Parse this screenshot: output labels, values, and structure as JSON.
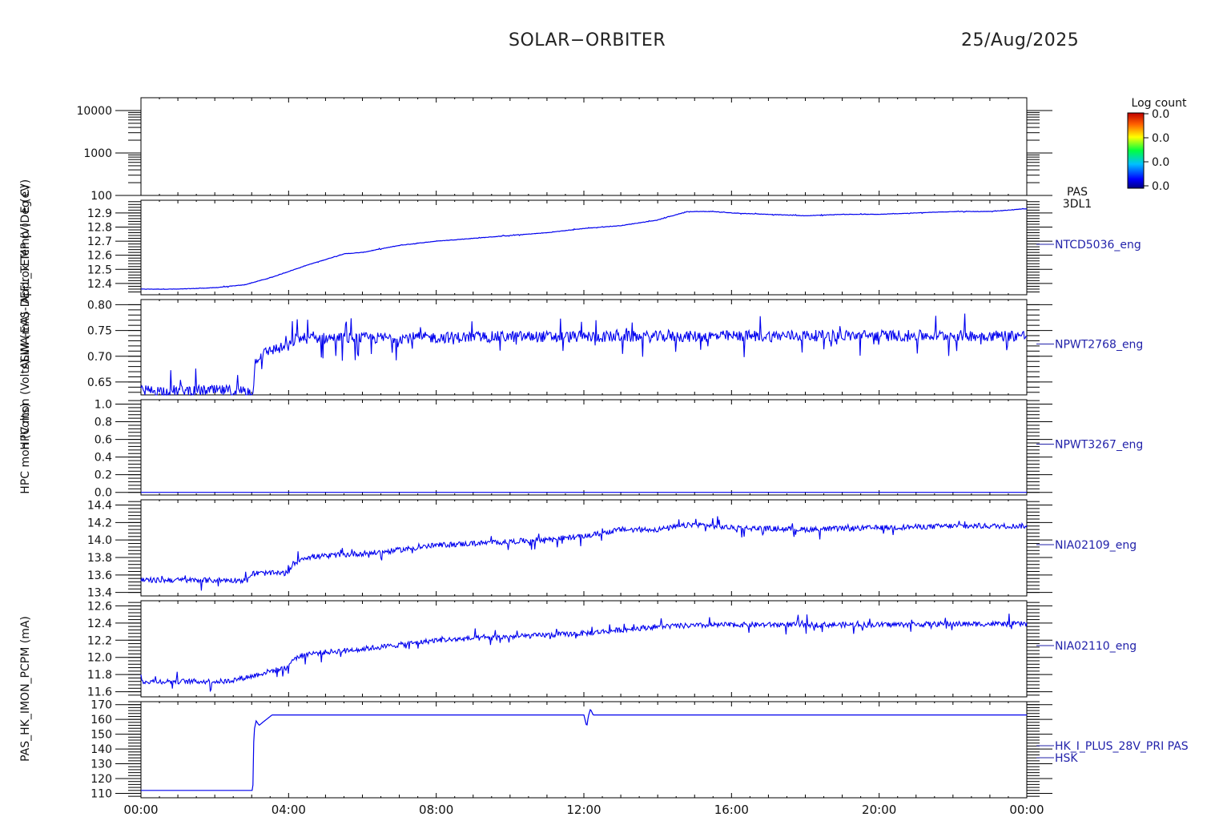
{
  "header": {
    "title": "SOLAR−ORBITER",
    "date": "25/Aug/2025"
  },
  "colors": {
    "axis": "#000000",
    "data": "#0000ee",
    "label": "#2222aa"
  },
  "colorbar": {
    "title": "Log count",
    "tick_labels": [
      "0.0",
      "0.0",
      "0.0",
      "0.0"
    ]
  },
  "x_axis": {
    "tick_labels": [
      "00:00",
      "04:00",
      "08:00",
      "12:00",
      "16:00",
      "20:00",
      "00:00"
    ],
    "unit": "hours",
    "range": [
      0,
      24
    ]
  },
  "chart_data": [
    {
      "type": "heatmap",
      "ylabel": "E (eV)",
      "yscale": "log",
      "ylim": [
        100,
        20000
      ],
      "yticks": [
        100,
        1000,
        10000
      ],
      "ytick_labels": [
        "100",
        "1000",
        "10000"
      ],
      "label": [
        "PAS",
        "3DL1"
      ],
      "colorbar": "Log count",
      "values": []
    },
    {
      "type": "line",
      "ylabel": "Approx Temp (Deg C)",
      "label": "NTCD5036_eng",
      "ylim": [
        12.32,
        12.99
      ],
      "yticks": [
        12.4,
        12.5,
        12.6,
        12.7,
        12.8,
        12.9
      ],
      "ytick_labels": [
        "12.4",
        "12.5",
        "12.6",
        "12.7",
        "12.8",
        "12.9"
      ],
      "noise": 0.003,
      "x": [
        0,
        1,
        2,
        2.8,
        3.5,
        4.5,
        5.5,
        6,
        7,
        8,
        9,
        10,
        11,
        12,
        13,
        14,
        14.8,
        15.5,
        16,
        17,
        18,
        19,
        20,
        21,
        22,
        23,
        24
      ],
      "y": [
        12.36,
        12.36,
        12.37,
        12.39,
        12.44,
        12.53,
        12.61,
        12.62,
        12.67,
        12.7,
        12.72,
        12.74,
        12.76,
        12.79,
        12.81,
        12.85,
        12.91,
        12.91,
        12.9,
        12.89,
        12.88,
        12.89,
        12.89,
        12.9,
        12.91,
        12.91,
        12.93
      ]
    },
    {
      "type": "line",
      "ylabel": "SWA-EAS-DEFL_TEMP (V)",
      "label": "NPWT2768_eng",
      "ylim": [
        0.625,
        0.81
      ],
      "yticks": [
        0.65,
        0.7,
        0.75,
        0.8
      ],
      "ytick_labels": [
        "0.65",
        "0.70",
        "0.75",
        "0.80"
      ],
      "noise": 0.022,
      "x": [
        0,
        3.05,
        3.1,
        3.5,
        4.0,
        4.2,
        6,
        10,
        14,
        18,
        24
      ],
      "y": [
        0.633,
        0.633,
        0.695,
        0.712,
        0.718,
        0.735,
        0.735,
        0.738,
        0.738,
        0.74,
        0.74
      ]
    },
    {
      "type": "line",
      "ylabel": "ALIM (mA)",
      "label": "NPWT3267_eng",
      "ylim": [
        -0.03,
        1.05
      ],
      "yticks": [
        0.0,
        0.2,
        0.4,
        0.6,
        0.8,
        1.0
      ],
      "ytick_labels": [
        "0.0",
        "0.2",
        "0.4",
        "0.6",
        "0.8",
        "1.0"
      ],
      "noise": 0,
      "x": [
        0,
        24
      ],
      "y": [
        0.0,
        0.0
      ]
    },
    {
      "type": "line",
      "ylabel": "HPC mon (Volts)",
      "label": "NIA02109_eng",
      "ylim": [
        13.36,
        14.46
      ],
      "yticks": [
        13.4,
        13.6,
        13.8,
        14.0,
        14.2,
        14.4
      ],
      "ytick_labels": [
        "13.4",
        "13.6",
        "13.8",
        "14.0",
        "14.2",
        "14.4"
      ],
      "noise": 0.06,
      "x": [
        0,
        2.9,
        3.0,
        4.0,
        4.1,
        4.4,
        6.5,
        8,
        10,
        12,
        13,
        14,
        15,
        16,
        18,
        20,
        22,
        24
      ],
      "y": [
        13.54,
        13.54,
        13.62,
        13.62,
        13.72,
        13.8,
        13.86,
        13.94,
        13.98,
        14.04,
        14.12,
        14.12,
        14.18,
        14.14,
        14.12,
        14.14,
        14.16,
        14.16
      ]
    },
    {
      "type": "line",
      "ylabel": "HPC mon (Volts)",
      "label": "NIA02110_eng",
      "ylim": [
        11.54,
        12.66
      ],
      "yticks": [
        11.6,
        11.8,
        12.0,
        12.2,
        12.4,
        12.6
      ],
      "ytick_labels": [
        "11.6",
        "11.8",
        "12.0",
        "12.2",
        "12.4",
        "12.6"
      ],
      "noise": 0.06,
      "x": [
        0,
        2.3,
        3.0,
        3.5,
        4.0,
        4.1,
        4.5,
        6.5,
        8,
        10,
        12,
        13,
        14,
        16,
        18,
        20,
        22,
        24
      ],
      "y": [
        11.72,
        11.72,
        11.78,
        11.84,
        11.88,
        11.98,
        12.04,
        12.12,
        12.2,
        12.24,
        12.28,
        12.32,
        12.36,
        12.38,
        12.38,
        12.38,
        12.39,
        12.39
      ]
    },
    {
      "type": "line",
      "ylabel": "PAS_HK_IMON_PCPM (mA)",
      "label": [
        "HK_I_PLUS_28V_PRI PAS",
        "HSK"
      ],
      "ylim": [
        107,
        172
      ],
      "yticks": [
        110,
        120,
        130,
        140,
        150,
        160,
        170
      ],
      "ytick_labels": [
        "110",
        "120",
        "130",
        "140",
        "150",
        "160",
        "170"
      ],
      "noise": 0,
      "x": [
        0,
        3.03,
        3.06,
        3.12,
        3.2,
        3.3,
        3.45,
        3.55,
        12.0,
        12.08,
        12.12,
        12.18,
        12.25,
        24
      ],
      "y": [
        112,
        112,
        152,
        159,
        156,
        158,
        161,
        163,
        163,
        155,
        162,
        167,
        163,
        163
      ]
    }
  ]
}
